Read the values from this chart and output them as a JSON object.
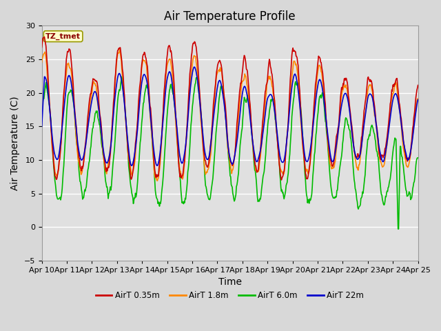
{
  "title": "Air Temperature Profile",
  "xlabel": "Time",
  "ylabel": "Air Temperature (C)",
  "ylim": [
    -5,
    30
  ],
  "x_tick_labels": [
    "Apr 10",
    "Apr 11",
    "Apr 12",
    "Apr 13",
    "Apr 14",
    "Apr 15",
    "Apr 16",
    "Apr 17",
    "Apr 18",
    "Apr 19",
    "Apr 20",
    "Apr 21",
    "Apr 22",
    "Apr 23",
    "Apr 24",
    "Apr 25"
  ],
  "colors": {
    "air035": "#cc0000",
    "air18": "#ff8800",
    "air60": "#00bb00",
    "air22": "#0000cc"
  },
  "legend_labels": [
    "AirT 0.35m",
    "AirT 1.8m",
    "AirT 6.0m",
    "AirT 22m"
  ],
  "inset_label": "TZ_tmet",
  "bg_plot": "#e0e0e0",
  "grid_color": "#ffffff",
  "title_fontsize": 12,
  "label_fontsize": 10,
  "tick_fontsize": 8,
  "line_width": 1.2
}
